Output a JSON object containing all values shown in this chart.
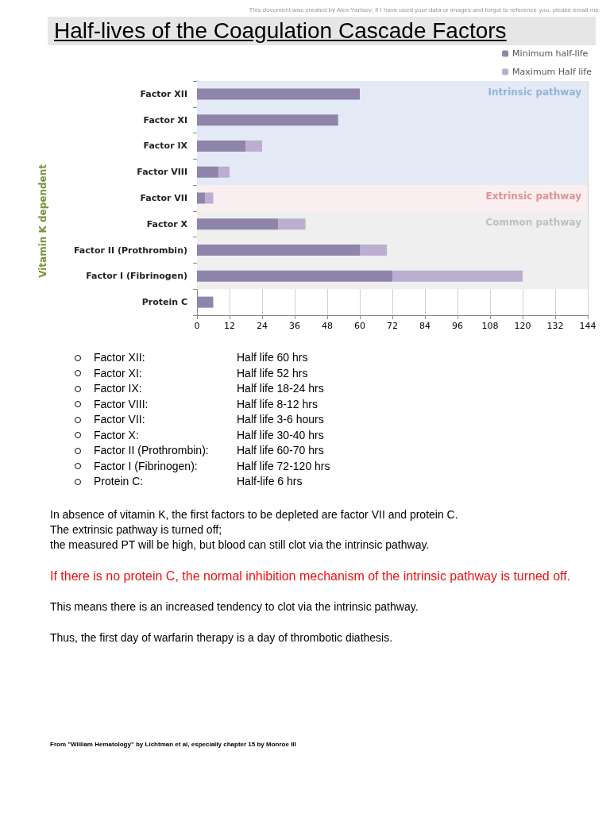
{
  "chart_data": {
    "type": "bar",
    "orientation": "horizontal",
    "title": "Half-lives of the Coagulation Cascade Factors",
    "categories": [
      "Factor XII",
      "Factor XI",
      "Factor IX",
      "Factor VIII",
      "Factor VII",
      "Factor X",
      "Factor II (Prothrombin)",
      "Factor I (Fibrinogen)",
      "Protein C"
    ],
    "series": [
      {
        "name": "Minimum half-life",
        "color": "#8f84aa",
        "values": [
          60,
          52,
          18,
          8,
          3,
          30,
          60,
          72,
          6
        ]
      },
      {
        "name": "Maximum Half life",
        "color": "#bcaed0",
        "values": [
          null,
          null,
          6,
          4,
          3,
          10,
          10,
          48,
          null
        ]
      }
    ],
    "stacked": true,
    "xlim": [
      0,
      144
    ],
    "xticks": [
      0,
      12,
      24,
      36,
      48,
      60,
      72,
      84,
      96,
      108,
      120,
      132,
      144
    ],
    "grid": "x",
    "legend": "top right",
    "bands": [
      {
        "axis": "y",
        "from": "Factor XII",
        "to": "Factor VIII",
        "label": "Intrinsic pathway",
        "color": "#e3eaf5"
      },
      {
        "axis": "y",
        "from": "Factor VII",
        "to": "Factor VII",
        "label": "Extrinsic pathway",
        "color": "#fbeef0"
      },
      {
        "axis": "y",
        "from": "Factor X",
        "to": "Factor I (Fibrinogen)",
        "label": "Common pathway",
        "color": "#efefef"
      }
    ],
    "annotations": [
      "This document was created by Alex Yartsev; if I have used your data or images and forgot to reference you, please email me.",
      "Vitamin K dependent",
      "Factor XII: Half life 60 hrs",
      "Factor XI: Half life 52 hrs",
      "Factor IX: Half life 18-24 hrs",
      "Factor VIII: Half life 8-12 hrs",
      "Factor VII: Half life 3-6 hours",
      "Factor X: Half life 30-40 hrs",
      "Factor II (Prothrombin): Half life 60-70 hrs",
      "Factor I (Fibrinogen): Half life 72-120 hrs",
      "Protein C: Half-life 6 hrs",
      "In absence of vitamin K, the first factors to be depleted are factor VII and protein C.",
      "The extrinsic pathway is turned off;",
      "the measured PT will be high, but blood can still clot via the intrinsic pathway.",
      "If there is no protein C, the normal inhibition mechanism of the intrinsic pathway is turned off.",
      "This means there is an increased tendency to clot via the intrinsic pathway.",
      "Thus, the first day of warfarin therapy is a day of thrombotic diathesis.",
      "From \"William Hematology\" by Lichtman et al, especially chapter 15 by Monroe III"
    ]
  }
}
